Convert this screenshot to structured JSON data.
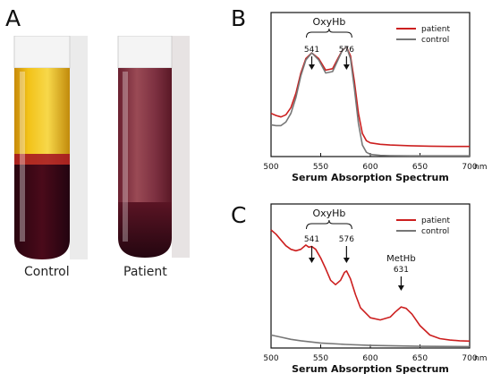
{
  "panel_a": {
    "letter": "A",
    "tubes": [
      {
        "label": "Control"
      },
      {
        "label": "Patient"
      }
    ]
  },
  "panel_b": {
    "letter": "B"
  },
  "panel_c": {
    "letter": "C"
  },
  "chart_data": [
    {
      "type": "line",
      "panel": "B",
      "xlabel": "Serum Absorption Spectrum",
      "x_unit": "nm",
      "xlim": [
        500,
        700
      ],
      "x_ticks": [
        500,
        550,
        600,
        650,
        700
      ],
      "bracket_label": "OxyHb",
      "annotations": [
        {
          "text": "541",
          "x": 541
        },
        {
          "text": "576",
          "x": 576
        }
      ],
      "legend_position": "top-right",
      "series": [
        {
          "name": "patient",
          "color": "#cc1f1f",
          "x": [
            500,
            505,
            510,
            515,
            520,
            525,
            530,
            535,
            541,
            548,
            555,
            562,
            568,
            572,
            576,
            580,
            584,
            588,
            592,
            596,
            600,
            610,
            620,
            640,
            660,
            680,
            700
          ],
          "y": [
            0.3,
            0.285,
            0.275,
            0.29,
            0.34,
            0.44,
            0.58,
            0.68,
            0.72,
            0.68,
            0.6,
            0.61,
            0.69,
            0.74,
            0.76,
            0.7,
            0.52,
            0.3,
            0.16,
            0.11,
            0.095,
            0.085,
            0.08,
            0.075,
            0.072,
            0.07,
            0.07
          ]
        },
        {
          "name": "control",
          "color": "#777777",
          "x": [
            500,
            505,
            510,
            515,
            520,
            525,
            530,
            535,
            541,
            548,
            555,
            562,
            568,
            572,
            576,
            580,
            584,
            588,
            592,
            596,
            600,
            610,
            620,
            640,
            660,
            680,
            700
          ],
          "y": [
            0.22,
            0.215,
            0.215,
            0.24,
            0.3,
            0.41,
            0.56,
            0.67,
            0.72,
            0.67,
            0.58,
            0.59,
            0.68,
            0.74,
            0.76,
            0.68,
            0.47,
            0.23,
            0.08,
            0.03,
            0.015,
            0.008,
            0.006,
            0.005,
            0.005,
            0.005,
            0.005
          ]
        }
      ]
    },
    {
      "type": "line",
      "panel": "C",
      "xlabel": "Serum Absorption Spectrum",
      "x_unit": "nm",
      "xlim": [
        500,
        700
      ],
      "x_ticks": [
        500,
        550,
        600,
        650,
        700
      ],
      "bracket_label": "OxyHb",
      "annotations": [
        {
          "text": "541",
          "x": 541
        },
        {
          "text": "576",
          "x": 576
        },
        {
          "text": "MetHb",
          "x": 631
        },
        {
          "text": "631",
          "x": 631
        }
      ],
      "legend_position": "top-right",
      "series": [
        {
          "name": "patient",
          "color": "#cc1f1f",
          "x": [
            500,
            505,
            510,
            515,
            520,
            525,
            530,
            535,
            538,
            541,
            545,
            550,
            555,
            560,
            565,
            570,
            574,
            576,
            580,
            585,
            590,
            600,
            610,
            620,
            625,
            631,
            636,
            642,
            650,
            660,
            670,
            680,
            690,
            700
          ],
          "y": [
            0.82,
            0.79,
            0.75,
            0.71,
            0.685,
            0.675,
            0.685,
            0.715,
            0.7,
            0.705,
            0.685,
            0.625,
            0.55,
            0.47,
            0.44,
            0.47,
            0.525,
            0.535,
            0.48,
            0.37,
            0.28,
            0.21,
            0.195,
            0.215,
            0.25,
            0.285,
            0.275,
            0.235,
            0.155,
            0.09,
            0.065,
            0.055,
            0.05,
            0.048
          ]
        },
        {
          "name": "control",
          "color": "#777777",
          "x": [
            500,
            510,
            520,
            530,
            540,
            550,
            575,
            600,
            650,
            700
          ],
          "y": [
            0.09,
            0.075,
            0.06,
            0.05,
            0.042,
            0.035,
            0.025,
            0.018,
            0.012,
            0.01
          ]
        }
      ]
    }
  ]
}
